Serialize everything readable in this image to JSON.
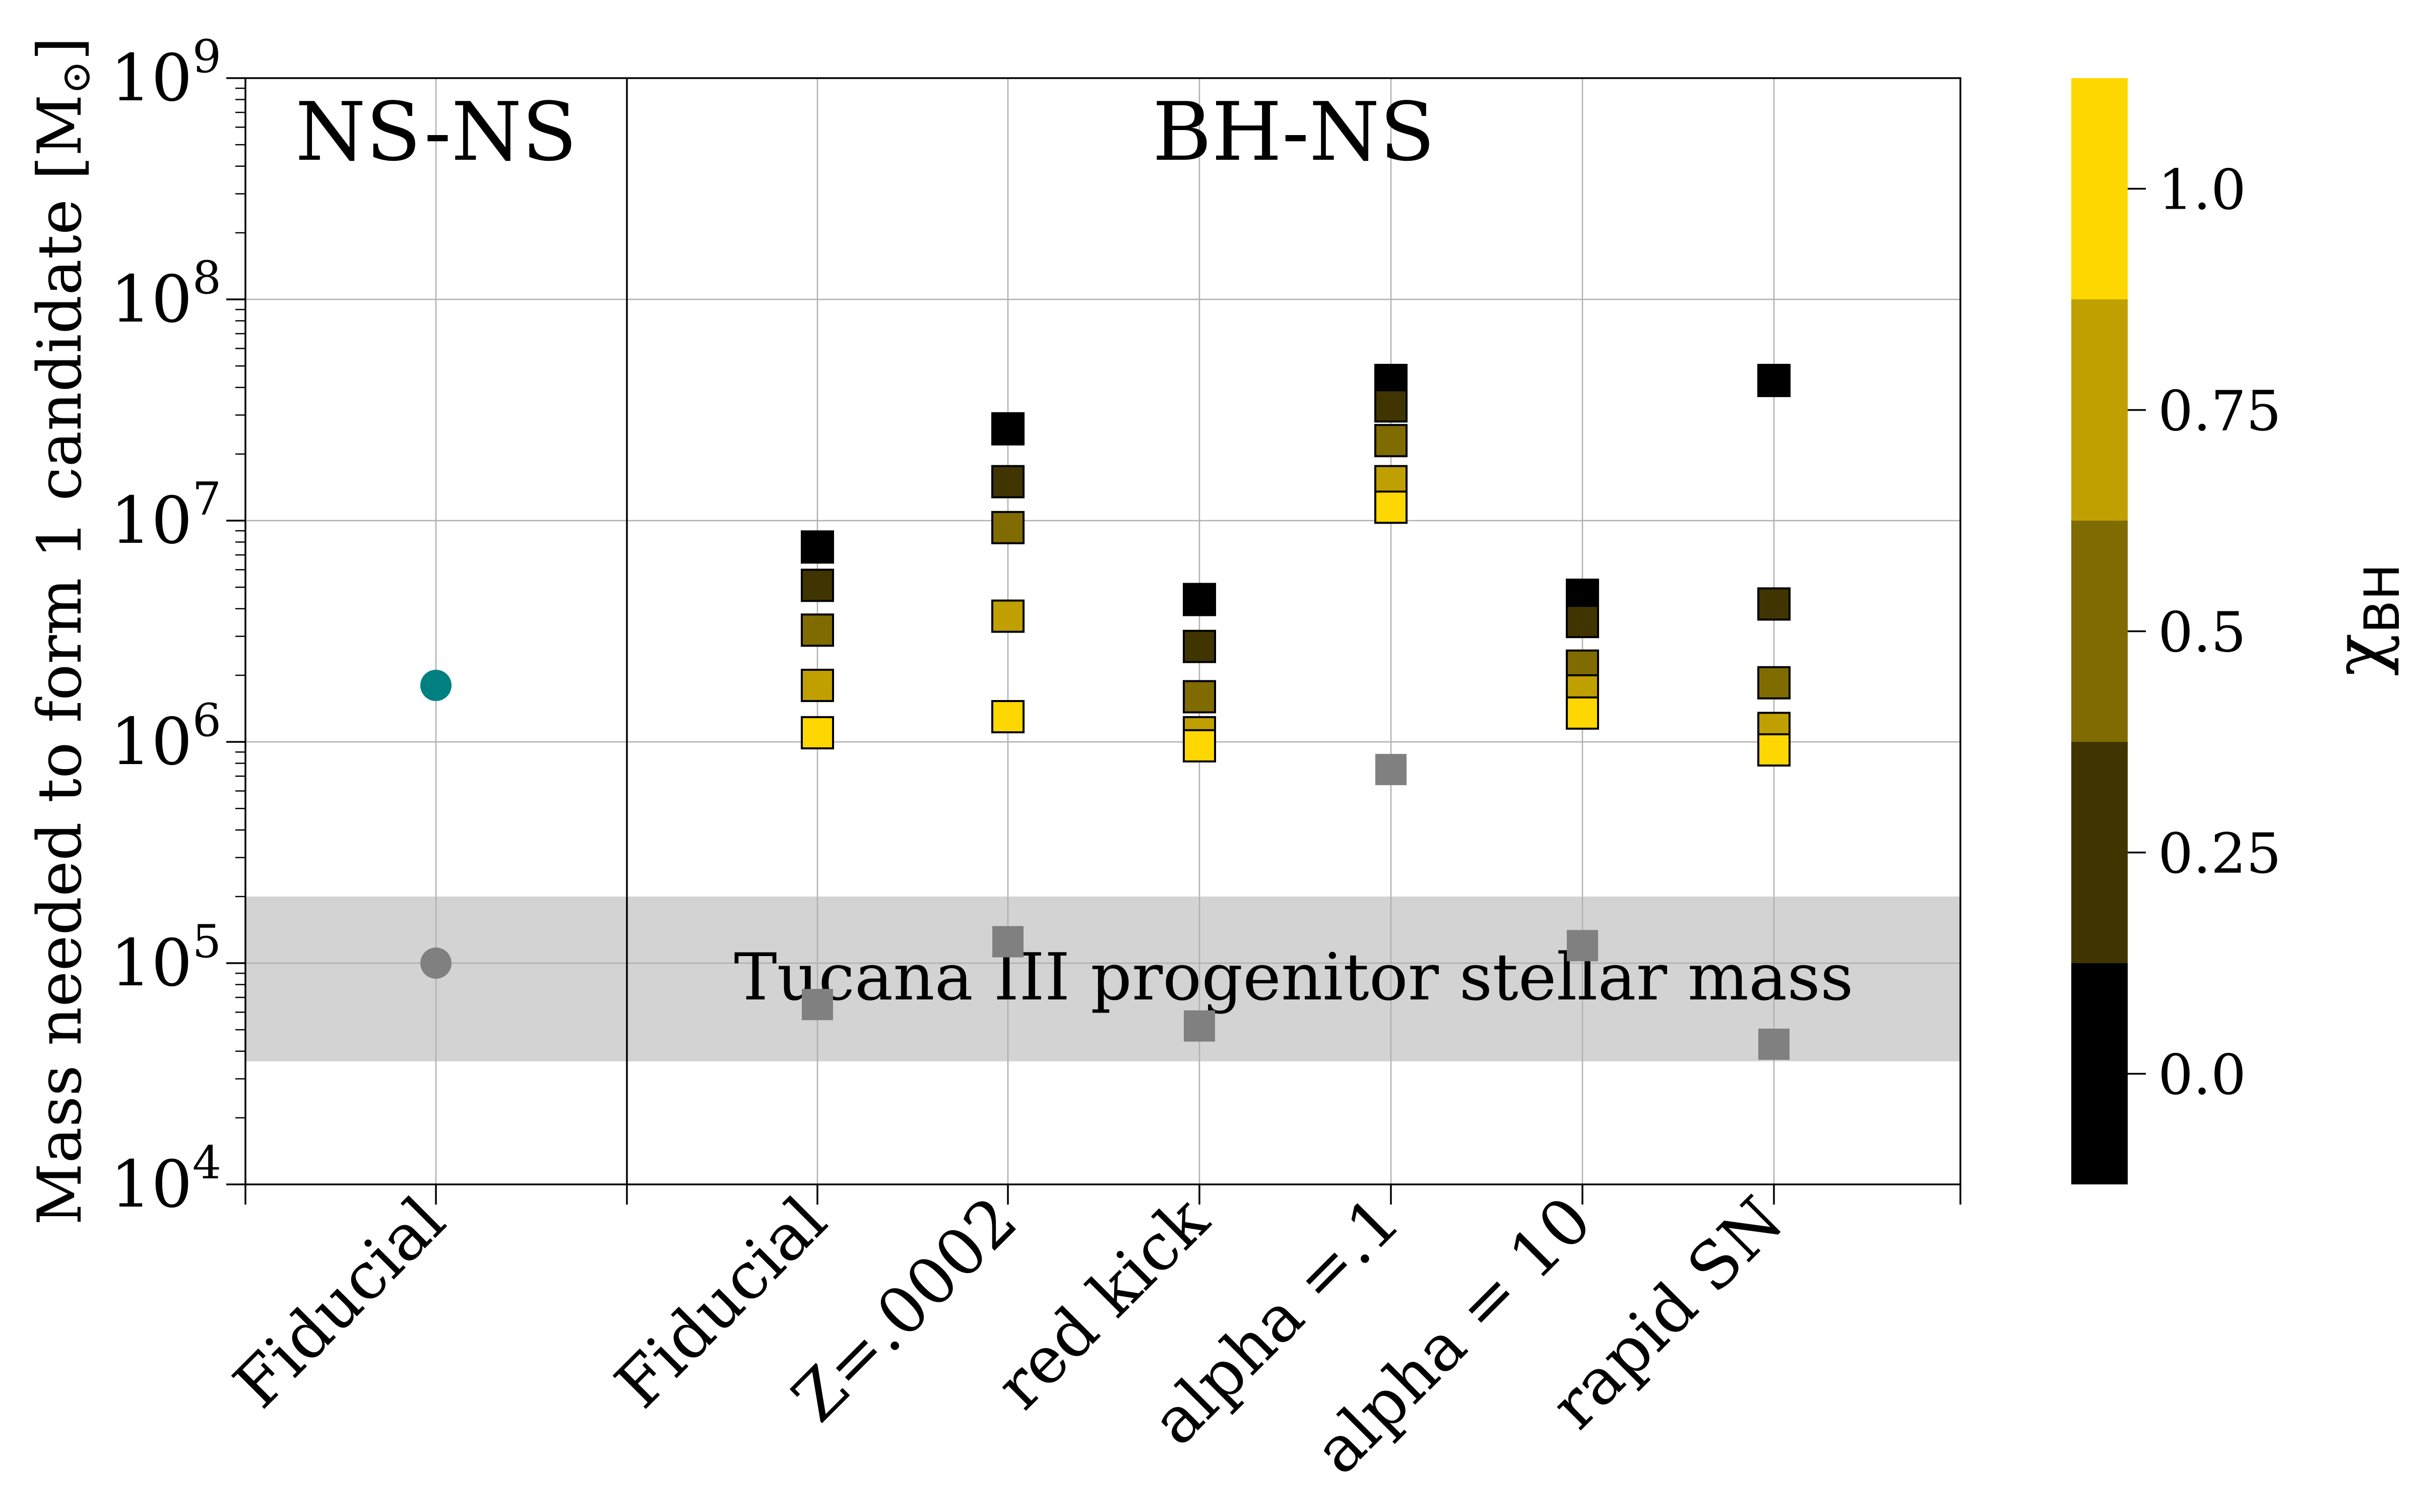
{
  "chart_data": {
    "type": "scatter",
    "ylabel": "Mass needed to form 1 candidate  [M",
    "ylabel_symbol": "⊙",
    "ylabel_close": "]",
    "yscale": "log",
    "ylim": [
      10000,
      1000000000
    ],
    "ytick_base": "10",
    "yticks": [
      {
        "exp": 4,
        "value": 10000
      },
      {
        "exp": 5,
        "value": 100000
      },
      {
        "exp": 6,
        "value": 1000000
      },
      {
        "exp": 7,
        "value": 10000000
      },
      {
        "exp": 8,
        "value": 100000000
      },
      {
        "exp": 9,
        "value": 1000000000
      }
    ],
    "categories": [
      "Fiducial",
      "Fiducial",
      "Z=.0002",
      "red kick",
      "alpha =.1",
      "alpha = 10",
      "rapid SN"
    ],
    "panels": [
      {
        "label": "NS-NS",
        "categories": [
          0
        ]
      },
      {
        "label": "BH-NS",
        "categories": [
          1,
          2,
          3,
          4,
          5,
          6
        ]
      }
    ],
    "band": {
      "label": "Tucana III progenitor stellar mass",
      "ymin": 36000,
      "ymax": 200000,
      "color": "#d3d3d3"
    },
    "series": [
      {
        "marker": "circle",
        "points": [
          {
            "cat": 0,
            "y": 1800000,
            "color": "#008080"
          },
          {
            "cat": 0,
            "y": 100000,
            "color": "#808080"
          }
        ]
      },
      {
        "marker": "square",
        "points": [
          {
            "cat": 1,
            "y": 7600000,
            "chi": 0.0
          },
          {
            "cat": 1,
            "y": 5100000,
            "chi": 0.25
          },
          {
            "cat": 1,
            "y": 3200000,
            "chi": 0.5
          },
          {
            "cat": 1,
            "y": 1800000,
            "chi": 0.75
          },
          {
            "cat": 1,
            "y": 1100000,
            "chi": 1.0
          },
          {
            "cat": 1,
            "y": 65000,
            "color": "#808080"
          },
          {
            "cat": 2,
            "y": 26000000,
            "chi": 0.0
          },
          {
            "cat": 2,
            "y": 15000000,
            "chi": 0.25
          },
          {
            "cat": 2,
            "y": 9300000,
            "chi": 0.5
          },
          {
            "cat": 2,
            "y": 3700000,
            "chi": 0.75
          },
          {
            "cat": 2,
            "y": 1300000,
            "chi": 1.0
          },
          {
            "cat": 2,
            "y": 125000,
            "color": "#808080"
          },
          {
            "cat": 3,
            "y": 4400000,
            "chi": 0.0
          },
          {
            "cat": 3,
            "y": 2700000,
            "chi": 0.25
          },
          {
            "cat": 3,
            "y": 1600000,
            "chi": 0.5
          },
          {
            "cat": 3,
            "y": 1100000,
            "chi": 0.75
          },
          {
            "cat": 3,
            "y": 960000,
            "chi": 1.0
          },
          {
            "cat": 3,
            "y": 52000,
            "color": "#808080"
          },
          {
            "cat": 4,
            "y": 43000000,
            "chi": 0.0
          },
          {
            "cat": 4,
            "y": 33000000,
            "chi": 0.25
          },
          {
            "cat": 4,
            "y": 23000000,
            "chi": 0.5
          },
          {
            "cat": 4,
            "y": 15000000,
            "chi": 0.75
          },
          {
            "cat": 4,
            "y": 11500000,
            "chi": 1.0
          },
          {
            "cat": 4,
            "y": 750000,
            "color": "#808080"
          },
          {
            "cat": 5,
            "y": 4600000,
            "chi": 0.0
          },
          {
            "cat": 5,
            "y": 3500000,
            "chi": 0.25
          },
          {
            "cat": 5,
            "y": 2200000,
            "chi": 0.5
          },
          {
            "cat": 5,
            "y": 1700000,
            "chi": 0.75
          },
          {
            "cat": 5,
            "y": 1350000,
            "chi": 1.0
          },
          {
            "cat": 5,
            "y": 120000,
            "color": "#808080"
          },
          {
            "cat": 6,
            "y": 43000000,
            "chi": 0.0
          },
          {
            "cat": 6,
            "y": 4200000,
            "chi": 0.25
          },
          {
            "cat": 6,
            "y": 1850000,
            "chi": 0.5
          },
          {
            "cat": 6,
            "y": 1150000,
            "chi": 0.75
          },
          {
            "cat": 6,
            "y": 920000,
            "chi": 1.0
          },
          {
            "cat": 6,
            "y": 43000,
            "color": "#808080"
          }
        ]
      }
    ],
    "colorbar": {
      "label": "χ",
      "label_sub": "BH",
      "range": [
        -0.125,
        1.125
      ],
      "ticks": [
        {
          "value": 0.0,
          "label": "0.0"
        },
        {
          "value": 0.25,
          "label": "0.25"
        },
        {
          "value": 0.5,
          "label": "0.5"
        },
        {
          "value": 0.75,
          "label": "0.75"
        },
        {
          "value": 1.0,
          "label": "1.0"
        }
      ],
      "bins": [
        {
          "min": -0.125,
          "max": 0.125,
          "color": "#000000"
        },
        {
          "min": 0.125,
          "max": 0.375,
          "color": "#403500"
        },
        {
          "min": 0.375,
          "max": 0.625,
          "color": "#806b00"
        },
        {
          "min": 0.625,
          "max": 0.875,
          "color": "#c0a000"
        },
        {
          "min": 0.875,
          "max": 1.125,
          "color": "#ffd700"
        }
      ]
    },
    "grid": true
  }
}
